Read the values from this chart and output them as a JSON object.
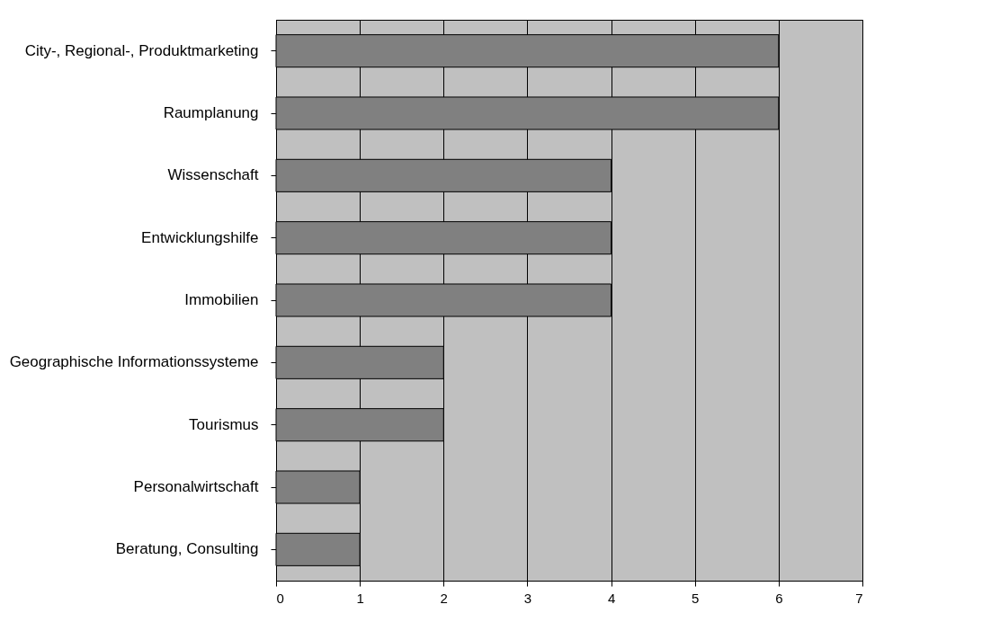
{
  "chart_data": {
    "type": "bar",
    "orientation": "horizontal",
    "categories": [
      "City-, Regional-, Produktmarketing",
      "Raumplanung",
      "Wissenschaft",
      "Entwicklungshilfe",
      "Immobilien",
      "Geographische Informationssysteme",
      "Tourismus",
      "Personalwirtschaft",
      "Beratung, Consulting"
    ],
    "values": [
      6,
      6,
      4,
      4,
      4,
      2,
      2,
      1,
      1
    ],
    "color": "#808080",
    "xlim": [
      0,
      7
    ],
    "xticks": [
      0,
      1,
      2,
      3,
      4,
      5,
      6,
      7
    ],
    "grid": "x"
  }
}
